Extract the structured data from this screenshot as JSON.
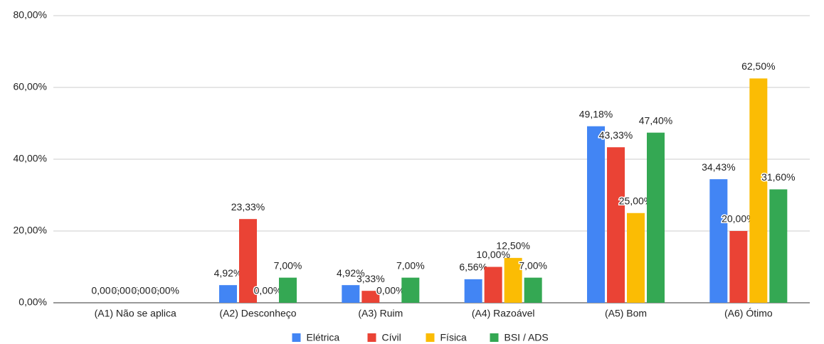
{
  "chart_data": {
    "type": "bar",
    "categories": [
      "(A1) Não se aplica",
      "(A2) Desconheço",
      "(A3) Ruim",
      "(A4) Razoável",
      "(A5) Bom",
      "(A6) Ótimo"
    ],
    "series": [
      {
        "name": "Elétrica",
        "color": "#4285f4",
        "values": [
          0,
          4.92,
          4.92,
          6.56,
          49.18,
          34.43
        ],
        "value_labels": [
          "0,00%",
          "4,92%",
          "4,92%",
          "6,56%",
          "49,18%",
          "34,43%"
        ]
      },
      {
        "name": "Cívil",
        "color": "#ea4335",
        "values": [
          0,
          23.33,
          3.33,
          10,
          43.33,
          20
        ],
        "value_labels": [
          "0,00%",
          "23,33%",
          "3,33%",
          "10,00%",
          "43,33%",
          "20,00%"
        ]
      },
      {
        "name": "Física",
        "color": "#fbbc04",
        "values": [
          0,
          0,
          0,
          12.5,
          25,
          62.5
        ],
        "value_labels": [
          "0,00%",
          "0,00%",
          "0,00%",
          "12,50%",
          "25,00%",
          "62,50%"
        ]
      },
      {
        "name": "BSI / ADS",
        "color": "#34a853",
        "values": [
          0,
          7,
          7,
          7,
          47.4,
          31.6
        ],
        "value_labels": [
          "0,00%",
          "7,00%",
          "7,00%",
          "7,00%",
          "47,40%",
          "31,60%"
        ]
      }
    ],
    "ylim": [
      0,
      80
    ],
    "yticks": [
      {
        "value": 0,
        "label": "0,00%"
      },
      {
        "value": 20,
        "label": "20,00%"
      },
      {
        "value": 40,
        "label": "40,00%"
      },
      {
        "value": 60,
        "label": "60,00%"
      },
      {
        "value": 80,
        "label": "80,00%"
      }
    ],
    "grid": true,
    "legend": "bottom"
  }
}
